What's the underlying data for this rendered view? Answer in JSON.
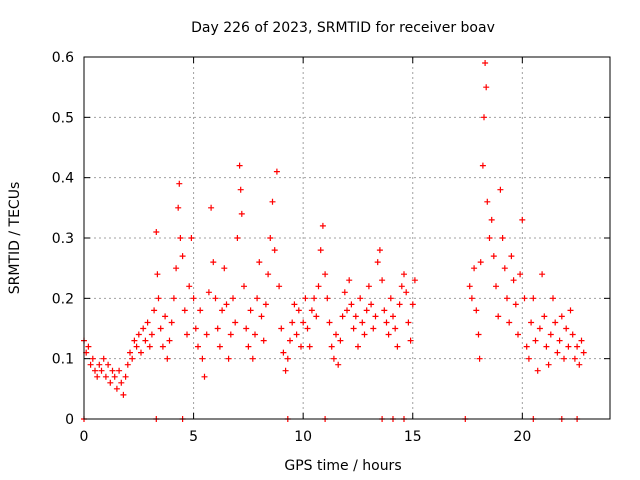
{
  "chart_data": {
    "type": "scatter",
    "title": "Day 226 of 2023, SRMTID for receiver boav",
    "xlabel": "GPS time / hours",
    "ylabel": "SRMTID / TECUs",
    "xlim": [
      0,
      24
    ],
    "ylim": [
      0,
      0.6
    ],
    "x_ticks": [
      0,
      5,
      10,
      15,
      20
    ],
    "x_tick_labels": [
      "0",
      "5",
      "10",
      "15",
      "20"
    ],
    "y_ticks": [
      0,
      0.1,
      0.2,
      0.3,
      0.4,
      0.5,
      0.6
    ],
    "y_tick_labels": [
      "0",
      "0.1",
      "0.2",
      "0.3",
      "0.4",
      "0.5",
      "0.6"
    ],
    "grid": true,
    "marker": "plus",
    "color": "#ff0000",
    "data_gap_hours": [
      15.2,
      17.5
    ],
    "series": [
      {
        "name": "SRMTID",
        "points": [
          [
            0.0,
            0.13
          ],
          [
            0.1,
            0.11
          ],
          [
            0.2,
            0.12
          ],
          [
            0.3,
            0.09
          ],
          [
            0.4,
            0.1
          ],
          [
            0.5,
            0.08
          ],
          [
            0.6,
            0.07
          ],
          [
            0.7,
            0.09
          ],
          [
            0.8,
            0.08
          ],
          [
            0.9,
            0.1
          ],
          [
            1.0,
            0.07
          ],
          [
            1.1,
            0.09
          ],
          [
            1.2,
            0.06
          ],
          [
            1.3,
            0.08
          ],
          [
            1.4,
            0.07
          ],
          [
            1.5,
            0.05
          ],
          [
            1.6,
            0.08
          ],
          [
            1.7,
            0.06
          ],
          [
            1.8,
            0.04
          ],
          [
            1.9,
            0.07
          ],
          [
            2.0,
            0.09
          ],
          [
            2.1,
            0.11
          ],
          [
            2.2,
            0.1
          ],
          [
            2.3,
            0.13
          ],
          [
            2.4,
            0.12
          ],
          [
            2.5,
            0.14
          ],
          [
            2.6,
            0.11
          ],
          [
            2.7,
            0.15
          ],
          [
            2.8,
            0.13
          ],
          [
            2.9,
            0.16
          ],
          [
            3.0,
            0.12
          ],
          [
            3.1,
            0.14
          ],
          [
            3.2,
            0.18
          ],
          [
            3.3,
            0.31
          ],
          [
            3.35,
            0.24
          ],
          [
            3.4,
            0.2
          ],
          [
            3.5,
            0.15
          ],
          [
            3.6,
            0.12
          ],
          [
            3.7,
            0.17
          ],
          [
            3.8,
            0.1
          ],
          [
            3.9,
            0.13
          ],
          [
            4.0,
            0.16
          ],
          [
            4.1,
            0.2
          ],
          [
            4.2,
            0.25
          ],
          [
            4.3,
            0.35
          ],
          [
            4.35,
            0.39
          ],
          [
            4.4,
            0.3
          ],
          [
            4.5,
            0.27
          ],
          [
            4.6,
            0.18
          ],
          [
            4.7,
            0.14
          ],
          [
            4.8,
            0.22
          ],
          [
            4.9,
            0.3
          ],
          [
            5.0,
            0.2
          ],
          [
            5.1,
            0.15
          ],
          [
            5.2,
            0.12
          ],
          [
            5.3,
            0.18
          ],
          [
            5.4,
            0.1
          ],
          [
            5.5,
            0.07
          ],
          [
            5.6,
            0.14
          ],
          [
            5.7,
            0.21
          ],
          [
            5.8,
            0.35
          ],
          [
            5.9,
            0.26
          ],
          [
            6.0,
            0.2
          ],
          [
            6.1,
            0.15
          ],
          [
            6.2,
            0.12
          ],
          [
            6.3,
            0.18
          ],
          [
            6.4,
            0.25
          ],
          [
            6.5,
            0.19
          ],
          [
            6.6,
            0.1
          ],
          [
            6.7,
            0.14
          ],
          [
            6.8,
            0.2
          ],
          [
            6.9,
            0.16
          ],
          [
            7.0,
            0.3
          ],
          [
            7.1,
            0.42
          ],
          [
            7.15,
            0.38
          ],
          [
            7.2,
            0.34
          ],
          [
            7.3,
            0.22
          ],
          [
            7.4,
            0.15
          ],
          [
            7.5,
            0.12
          ],
          [
            7.6,
            0.18
          ],
          [
            7.7,
            0.1
          ],
          [
            7.8,
            0.14
          ],
          [
            7.9,
            0.2
          ],
          [
            8.0,
            0.26
          ],
          [
            8.1,
            0.17
          ],
          [
            8.2,
            0.13
          ],
          [
            8.3,
            0.19
          ],
          [
            8.4,
            0.24
          ],
          [
            8.5,
            0.3
          ],
          [
            8.6,
            0.36
          ],
          [
            8.7,
            0.28
          ],
          [
            8.8,
            0.41
          ],
          [
            8.9,
            0.22
          ],
          [
            9.0,
            0.15
          ],
          [
            9.1,
            0.11
          ],
          [
            9.2,
            0.08
          ],
          [
            9.3,
            0.1
          ],
          [
            9.4,
            0.13
          ],
          [
            9.5,
            0.16
          ],
          [
            9.6,
            0.19
          ],
          [
            9.7,
            0.14
          ],
          [
            9.8,
            0.18
          ],
          [
            9.9,
            0.12
          ],
          [
            10.0,
            0.16
          ],
          [
            10.1,
            0.2
          ],
          [
            10.2,
            0.15
          ],
          [
            10.3,
            0.12
          ],
          [
            10.4,
            0.18
          ],
          [
            10.5,
            0.2
          ],
          [
            10.6,
            0.17
          ],
          [
            10.7,
            0.22
          ],
          [
            10.8,
            0.28
          ],
          [
            10.9,
            0.32
          ],
          [
            11.0,
            0.24
          ],
          [
            11.1,
            0.2
          ],
          [
            11.2,
            0.16
          ],
          [
            11.3,
            0.12
          ],
          [
            11.4,
            0.1
          ],
          [
            11.5,
            0.14
          ],
          [
            11.6,
            0.09
          ],
          [
            11.7,
            0.13
          ],
          [
            11.8,
            0.17
          ],
          [
            11.9,
            0.21
          ],
          [
            12.0,
            0.18
          ],
          [
            12.1,
            0.23
          ],
          [
            12.2,
            0.19
          ],
          [
            12.3,
            0.15
          ],
          [
            12.4,
            0.17
          ],
          [
            12.5,
            0.12
          ],
          [
            12.6,
            0.2
          ],
          [
            12.7,
            0.16
          ],
          [
            12.8,
            0.14
          ],
          [
            12.9,
            0.18
          ],
          [
            13.0,
            0.22
          ],
          [
            13.1,
            0.19
          ],
          [
            13.2,
            0.15
          ],
          [
            13.3,
            0.17
          ],
          [
            13.4,
            0.26
          ],
          [
            13.5,
            0.28
          ],
          [
            13.6,
            0.23
          ],
          [
            13.7,
            0.18
          ],
          [
            13.8,
            0.16
          ],
          [
            13.9,
            0.14
          ],
          [
            14.0,
            0.2
          ],
          [
            14.1,
            0.17
          ],
          [
            14.2,
            0.15
          ],
          [
            14.3,
            0.12
          ],
          [
            14.4,
            0.19
          ],
          [
            14.5,
            0.22
          ],
          [
            14.6,
            0.24
          ],
          [
            14.7,
            0.21
          ],
          [
            14.8,
            0.16
          ],
          [
            14.9,
            0.13
          ],
          [
            15.0,
            0.19
          ],
          [
            15.1,
            0.23
          ],
          [
            17.6,
            0.22
          ],
          [
            17.7,
            0.2
          ],
          [
            17.8,
            0.25
          ],
          [
            17.9,
            0.18
          ],
          [
            18.0,
            0.14
          ],
          [
            18.05,
            0.1
          ],
          [
            18.1,
            0.26
          ],
          [
            18.2,
            0.42
          ],
          [
            18.25,
            0.5
          ],
          [
            18.3,
            0.59
          ],
          [
            18.35,
            0.55
          ],
          [
            18.4,
            0.36
          ],
          [
            18.5,
            0.3
          ],
          [
            18.6,
            0.33
          ],
          [
            18.7,
            0.27
          ],
          [
            18.8,
            0.22
          ],
          [
            18.9,
            0.17
          ],
          [
            19.0,
            0.38
          ],
          [
            19.1,
            0.3
          ],
          [
            19.2,
            0.25
          ],
          [
            19.3,
            0.2
          ],
          [
            19.4,
            0.16
          ],
          [
            19.5,
            0.27
          ],
          [
            19.6,
            0.23
          ],
          [
            19.7,
            0.19
          ],
          [
            19.8,
            0.14
          ],
          [
            19.9,
            0.24
          ],
          [
            20.0,
            0.33
          ],
          [
            20.1,
            0.2
          ],
          [
            20.2,
            0.12
          ],
          [
            20.3,
            0.1
          ],
          [
            20.4,
            0.16
          ],
          [
            20.5,
            0.2
          ],
          [
            20.6,
            0.13
          ],
          [
            20.7,
            0.08
          ],
          [
            20.8,
            0.15
          ],
          [
            20.9,
            0.24
          ],
          [
            21.0,
            0.17
          ],
          [
            21.1,
            0.12
          ],
          [
            21.2,
            0.09
          ],
          [
            21.3,
            0.14
          ],
          [
            21.4,
            0.2
          ],
          [
            21.5,
            0.16
          ],
          [
            21.6,
            0.11
          ],
          [
            21.7,
            0.13
          ],
          [
            21.8,
            0.17
          ],
          [
            21.9,
            0.1
          ],
          [
            22.0,
            0.15
          ],
          [
            22.1,
            0.12
          ],
          [
            22.2,
            0.18
          ],
          [
            22.3,
            0.14
          ],
          [
            22.4,
            0.1
          ],
          [
            22.5,
            0.12
          ],
          [
            22.6,
            0.09
          ],
          [
            22.7,
            0.13
          ],
          [
            22.8,
            0.11
          ]
        ]
      },
      {
        "name": "zero-value markers",
        "points": [
          [
            0.0,
            0
          ],
          [
            3.3,
            0
          ],
          [
            4.5,
            0
          ],
          [
            9.3,
            0
          ],
          [
            11.0,
            0
          ],
          [
            13.6,
            0
          ],
          [
            14.1,
            0
          ],
          [
            14.6,
            0
          ],
          [
            17.4,
            0
          ],
          [
            20.5,
            0
          ],
          [
            21.8,
            0
          ],
          [
            22.5,
            0
          ]
        ]
      }
    ]
  }
}
